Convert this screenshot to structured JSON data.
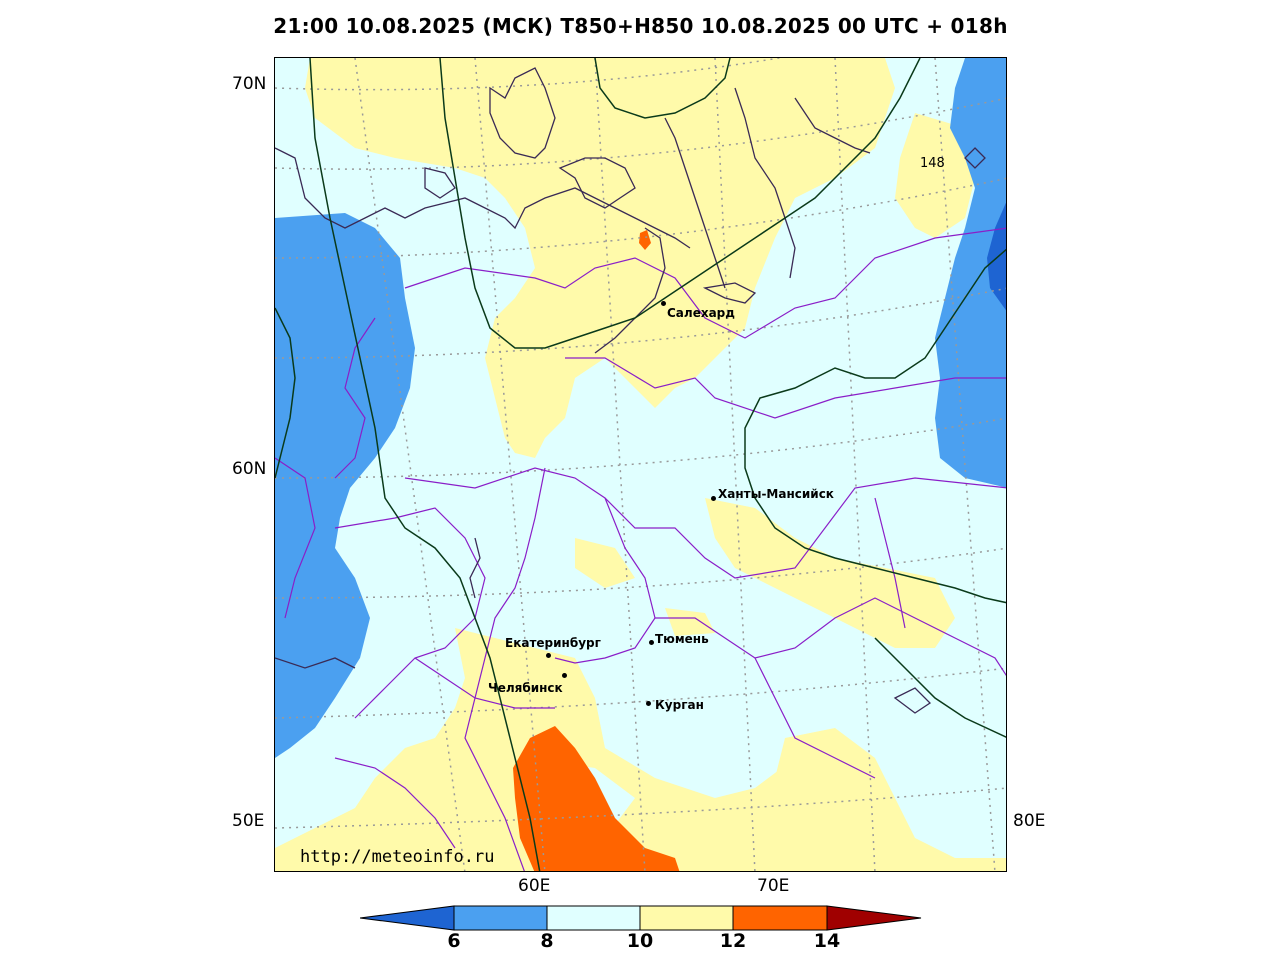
{
  "title": "21:00 10.08.2025 (МСК) T850+H850 10.08.2025 00 UTC + 018h",
  "axes": {
    "lat_labels": [
      "70N",
      "60N",
      "50E"
    ],
    "lon_labels": [
      "60E",
      "70E"
    ],
    "right_label": "80E"
  },
  "cities": [
    {
      "name": "Салехард"
    },
    {
      "name": "Ханты-Мансийск"
    },
    {
      "name": "Екатеринбург"
    },
    {
      "name": "Тюмень"
    },
    {
      "name": "Челябинск"
    },
    {
      "name": "Курган"
    }
  ],
  "contour_label": "148",
  "watermark": "http://meteoinfo.ru",
  "colorbar": {
    "ticks": [
      "6",
      "8",
      "10",
      "12",
      "14"
    ],
    "colors": [
      "#1e64d2",
      "#4ba0f0",
      "#e0ffff",
      "#fffaaa",
      "#ff6400",
      "#a00000"
    ]
  },
  "colors": {
    "blue_dark": "#1e64d2",
    "blue": "#4ba0f0",
    "cyan": "#e0ffff",
    "yellow": "#fffaaa",
    "orange": "#ff6400",
    "border": "#8a1ec8",
    "coast": "#3a2a55",
    "contour": "#0a3a1a"
  }
}
